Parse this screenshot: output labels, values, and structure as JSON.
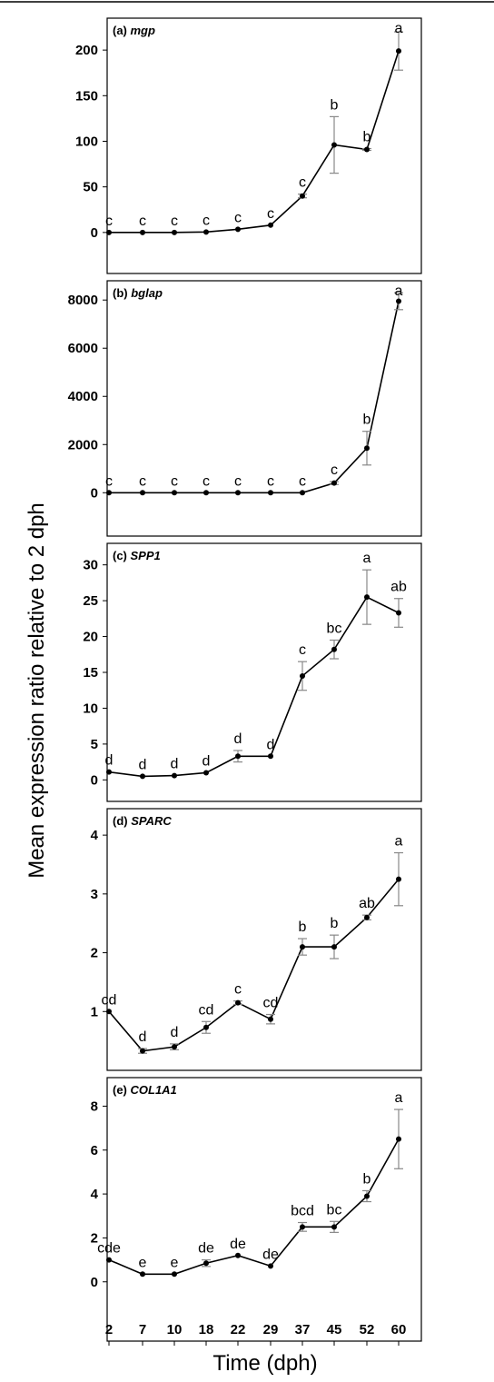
{
  "axes": {
    "y_title": "Mean expression ratio relative to 2 dph",
    "x_title": "Time (dph)",
    "x_ticks": [
      "2",
      "7",
      "10",
      "18",
      "22",
      "29",
      "37",
      "45",
      "52",
      "60"
    ]
  },
  "chart_data": [
    {
      "type": "line",
      "panel_prefix": "(a) ",
      "gene": "mgp",
      "gene_italic": true,
      "x": [
        2,
        7,
        10,
        18,
        22,
        29,
        37,
        45,
        52,
        60
      ],
      "values": [
        0,
        0,
        0,
        0.5,
        3.5,
        8,
        40,
        96,
        91,
        199
      ],
      "errors": [
        0,
        0,
        0,
        0,
        0,
        0,
        2,
        31,
        1,
        21
      ],
      "significance": [
        "c",
        "c",
        "c",
        "c",
        "c",
        "c",
        "c",
        "b",
        "b",
        "a"
      ],
      "ylim": [
        -45,
        235
      ],
      "y_ticks": [
        0,
        50,
        100,
        150,
        200
      ]
    },
    {
      "type": "line",
      "panel_prefix": "(b) ",
      "gene": "bglap",
      "gene_italic": true,
      "x": [
        2,
        7,
        10,
        18,
        22,
        29,
        37,
        45,
        52,
        60
      ],
      "values": [
        0,
        0,
        0,
        0,
        0,
        0,
        0,
        400,
        1850,
        7950
      ],
      "errors": [
        0,
        0,
        0,
        0,
        0,
        0,
        0,
        60,
        700,
        350
      ],
      "significance": [
        "c",
        "c",
        "c",
        "c",
        "c",
        "c",
        "c",
        "c",
        "b",
        "a"
      ],
      "ylim": [
        -1800,
        8800
      ],
      "y_ticks": [
        0,
        2000,
        4000,
        6000,
        8000
      ]
    },
    {
      "type": "line",
      "panel_prefix": "(c) ",
      "gene": "SPP1",
      "gene_italic": true,
      "x": [
        2,
        7,
        10,
        18,
        22,
        29,
        37,
        45,
        52,
        60
      ],
      "values": [
        1.1,
        0.5,
        0.6,
        1.0,
        3.3,
        3.3,
        14.5,
        18.2,
        25.5,
        23.3
      ],
      "errors": [
        0,
        0,
        0,
        0,
        0.8,
        0,
        2.0,
        1.3,
        3.8,
        2.0
      ],
      "significance": [
        "d",
        "d",
        "d",
        "d",
        "d",
        "d",
        "c",
        "bc",
        "a",
        "ab"
      ],
      "ylim": [
        -3,
        33
      ],
      "y_ticks": [
        0,
        5,
        10,
        15,
        20,
        25,
        30
      ]
    },
    {
      "type": "line",
      "panel_prefix": "(d) ",
      "gene": "SPARC",
      "gene_italic": true,
      "x": [
        2,
        7,
        10,
        18,
        22,
        29,
        37,
        45,
        52,
        60
      ],
      "values": [
        1.0,
        0.33,
        0.4,
        0.73,
        1.15,
        0.87,
        2.1,
        2.1,
        2.6,
        3.25
      ],
      "errors": [
        0,
        0.04,
        0.05,
        0.1,
        0.03,
        0.08,
        0.14,
        0.2,
        0.04,
        0.45
      ],
      "significance": [
        "cd",
        "d",
        "d",
        "cd",
        "c",
        "cd",
        "b",
        "b",
        "ab",
        "a"
      ],
      "ylim": [
        0,
        4.45
      ],
      "y_ticks": [
        1,
        2,
        3,
        4
      ]
    },
    {
      "type": "line",
      "panel_prefix": "(e) ",
      "gene": "COL1A1",
      "gene_italic": true,
      "x": [
        2,
        7,
        10,
        18,
        22,
        29,
        37,
        45,
        52,
        60
      ],
      "values": [
        1.0,
        0.35,
        0.35,
        0.85,
        1.2,
        0.72,
        2.5,
        2.5,
        3.9,
        6.5
      ],
      "errors": [
        0,
        0,
        0,
        0.15,
        0,
        0,
        0.2,
        0.25,
        0.25,
        1.35
      ],
      "significance": [
        "cde",
        "e",
        "e",
        "de",
        "de",
        "de",
        "bcd",
        "bc",
        "b",
        "a"
      ],
      "ylim": [
        -2.7,
        9.3
      ],
      "y_ticks": [
        0,
        2,
        4,
        6,
        8
      ]
    }
  ]
}
